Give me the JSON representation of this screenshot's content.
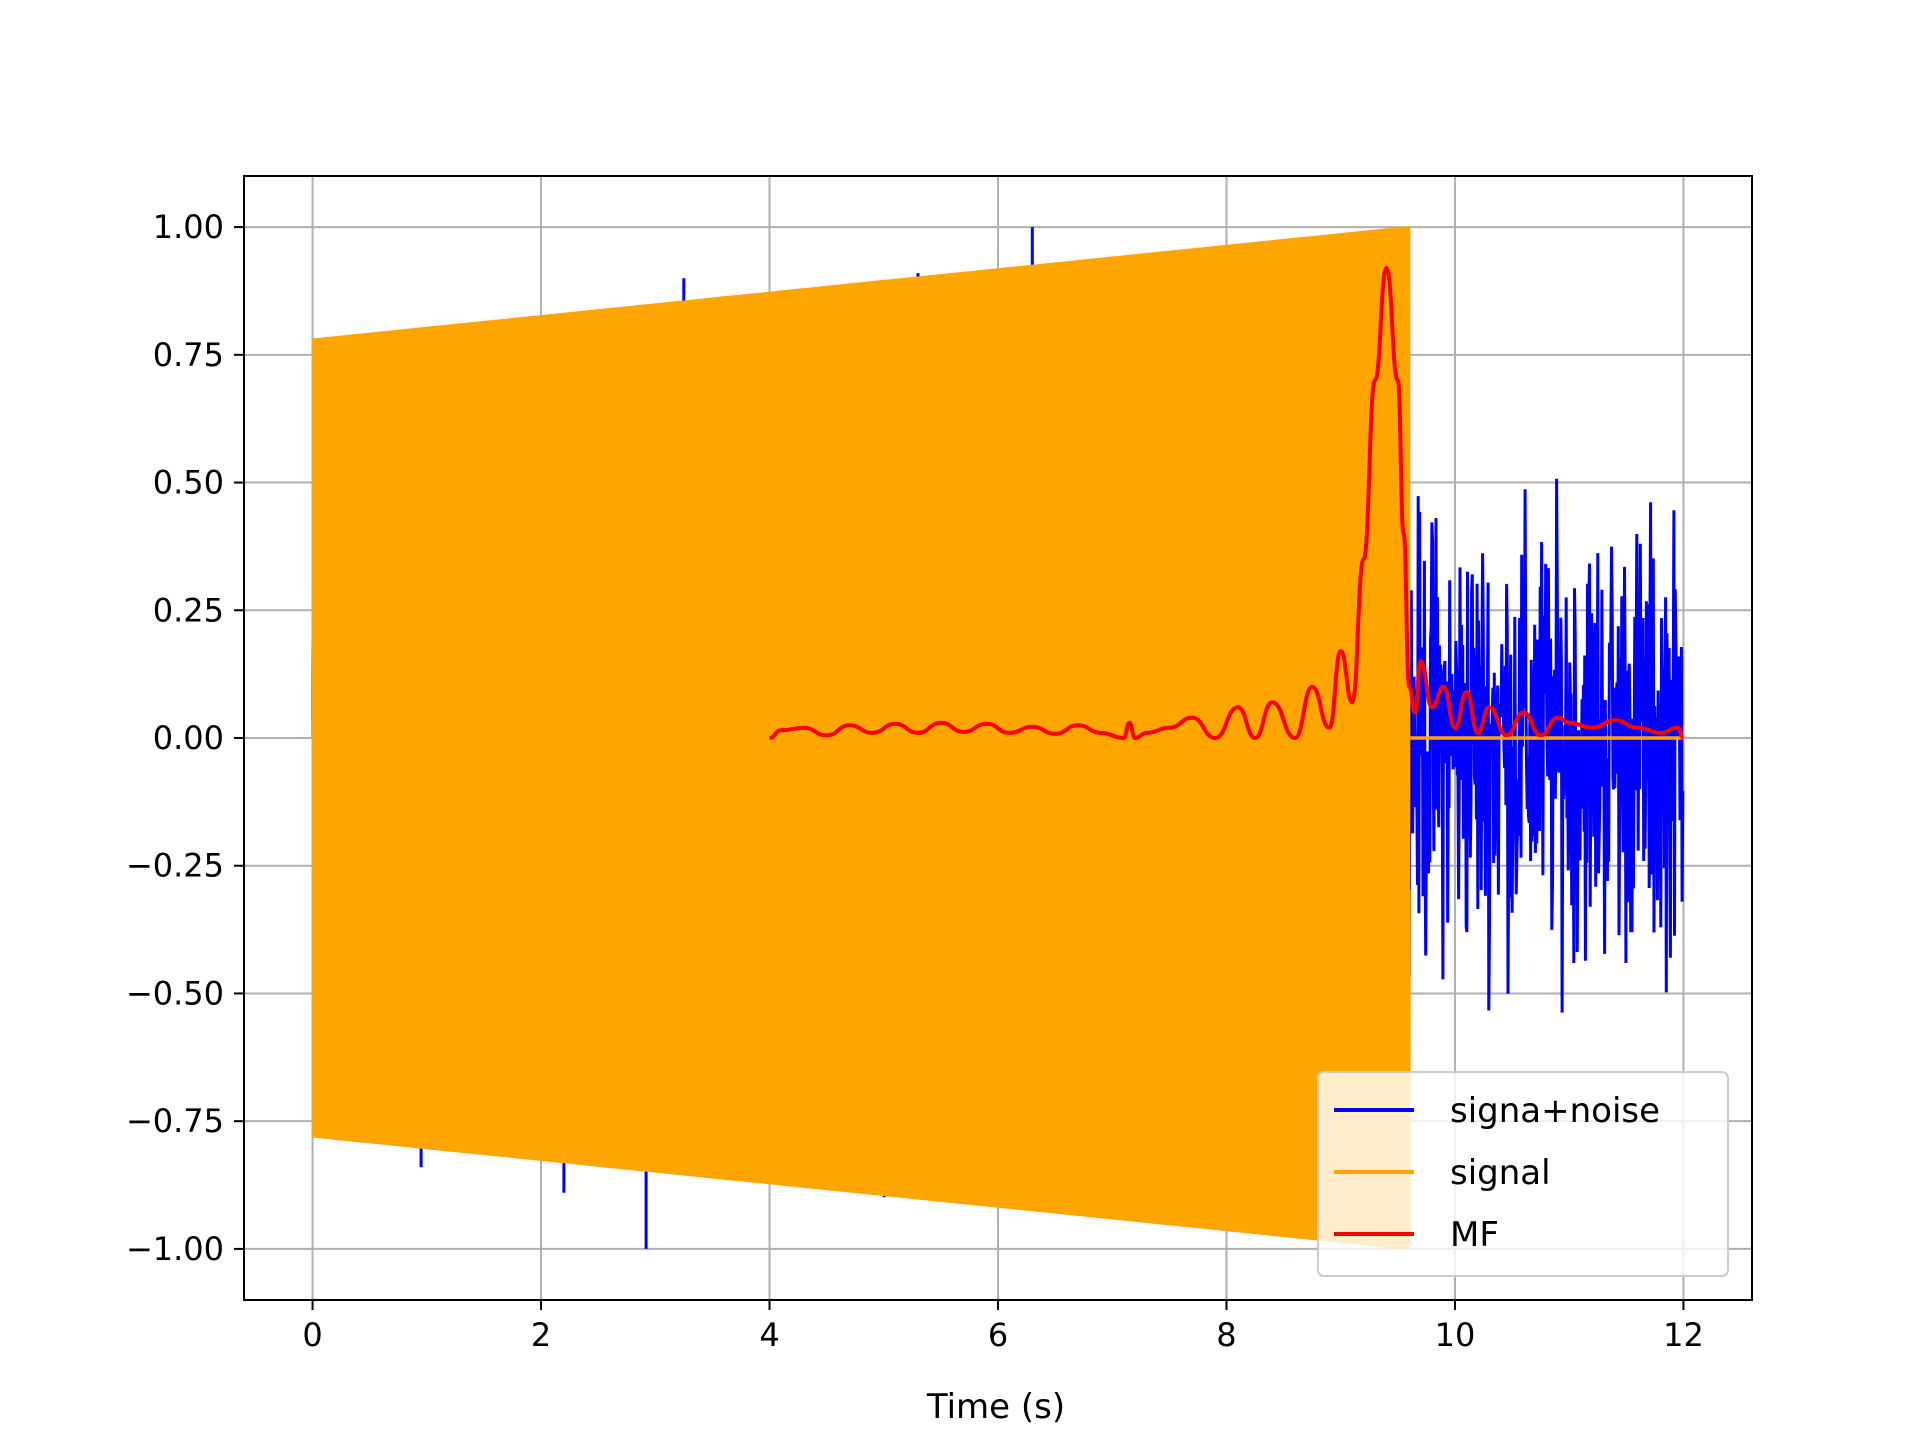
{
  "chart_data": {
    "type": "line",
    "title": "",
    "xlabel": "Time (s)",
    "ylabel": "",
    "xlim": [
      -0.6,
      12.6
    ],
    "ylim": [
      -1.1,
      1.1
    ],
    "xticks": [
      0,
      2,
      4,
      6,
      8,
      10,
      12
    ],
    "xtick_labels": [
      "0",
      "2",
      "4",
      "6",
      "8",
      "10",
      "12"
    ],
    "yticks": [
      1.0,
      0.75,
      0.5,
      0.25,
      0.0,
      -0.25,
      -0.5,
      -0.75,
      -1.0
    ],
    "ytick_labels": [
      "1.00",
      "0.75",
      "0.50",
      "0.25",
      "0.00",
      "−0.25",
      "−0.50",
      "−0.75",
      "−1.00"
    ],
    "grid": true,
    "legend_position": "lower-right",
    "series": [
      {
        "name": "signa+noise",
        "color": "#0000ff",
        "description_points": {
          "signal_region_x": [
            0,
            9.6
          ],
          "noise_region_x": [
            9.6,
            12
          ],
          "spikes": [
            [
              0.95,
              -0.84
            ],
            [
              2.2,
              -0.89
            ],
            [
              2.92,
              -1.0
            ],
            [
              3.25,
              0.9
            ],
            [
              5.3,
              0.91
            ],
            [
              5.45,
              -0.9
            ],
            [
              6.3,
              1.0
            ]
          ],
          "noise_extent": [
            -0.7,
            0.65
          ]
        }
      },
      {
        "name": "signal",
        "color": "#ffa500",
        "envelope": {
          "x": [
            0,
            9.6
          ],
          "amplitude_start": 0.78,
          "amplitude_end": 1.0
        },
        "after_x": 9.6,
        "after_value": 0.0
      },
      {
        "name": "MF",
        "color": "#ff0000",
        "x": [
          4.0,
          4.1,
          4.3,
          4.5,
          4.7,
          4.9,
          5.1,
          5.3,
          5.5,
          5.7,
          5.9,
          6.1,
          6.3,
          6.5,
          6.7,
          6.9,
          7.1,
          7.15,
          7.2,
          7.3,
          7.5,
          7.7,
          7.9,
          8.1,
          8.25,
          8.4,
          8.6,
          8.75,
          8.9,
          9.0,
          9.1,
          9.2,
          9.3,
          9.4,
          9.5,
          9.55,
          9.6,
          9.65,
          9.7,
          9.8,
          9.9,
          10.0,
          10.1,
          10.2,
          10.3,
          10.45,
          10.6,
          10.75,
          10.9,
          11.0,
          11.2,
          11.4,
          11.6,
          11.8,
          11.95,
          12.0
        ],
        "values": [
          0.0,
          0.015,
          0.02,
          0.005,
          0.025,
          0.01,
          0.028,
          0.01,
          0.03,
          0.012,
          0.028,
          0.01,
          0.022,
          0.008,
          0.025,
          0.01,
          0.0,
          0.03,
          0.0,
          0.01,
          0.02,
          0.04,
          0.0,
          0.06,
          0.0,
          0.07,
          0.0,
          0.1,
          0.02,
          0.17,
          0.07,
          0.35,
          0.7,
          0.92,
          0.7,
          0.4,
          0.1,
          0.05,
          0.15,
          0.06,
          0.1,
          0.02,
          0.09,
          0.01,
          0.06,
          0.005,
          0.05,
          0.005,
          0.04,
          0.03,
          0.02,
          0.035,
          0.02,
          0.01,
          0.02,
          0.0
        ]
      }
    ]
  }
}
